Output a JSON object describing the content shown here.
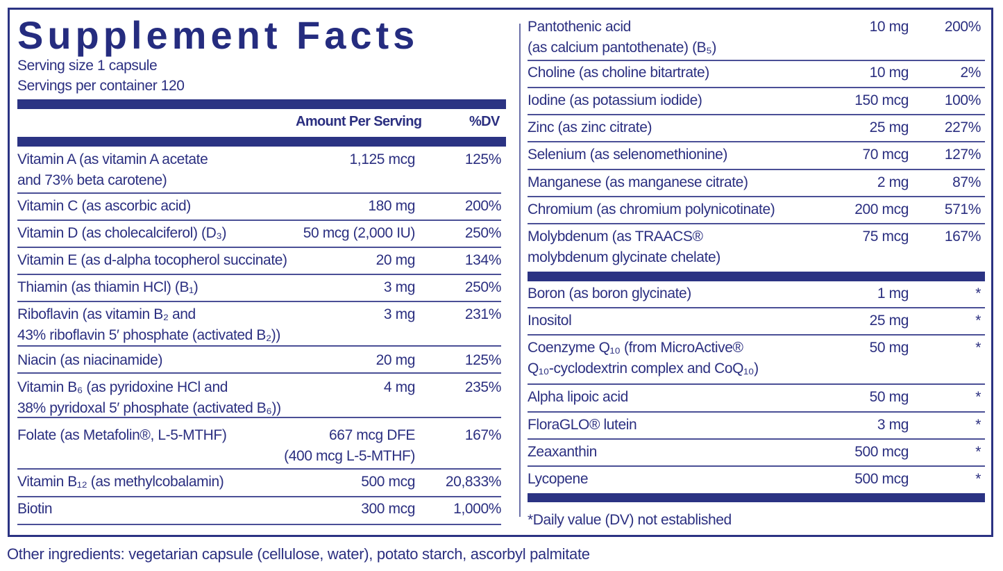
{
  "label": {
    "title": "Supplement Facts",
    "serving_size": "Serving size  1 capsule",
    "servings_per_container": "Servings per container  120",
    "header_amount": "Amount Per Serving",
    "header_dv": "%DV",
    "footnote": "*Daily value (DV) not established",
    "other_ingredients": "Other ingredients: vegetarian capsule (cellulose, water), potato starch, ascorbyl palmitate",
    "colors": {
      "ink": "#2b2f80",
      "bar": "#2b3383",
      "background": "#ffffff"
    }
  },
  "left_rows": [
    {
      "name": "Vitamin A (as vitamin A acetate\nand 73% beta carotene)",
      "amount": "1,125 mcg",
      "dv": "125%"
    },
    {
      "name": "Vitamin C (as ascorbic acid)",
      "amount": "180 mg",
      "dv": "200%"
    },
    {
      "name": "Vitamin D (as cholecalciferol) (D₃)",
      "amount": "50 mcg (2,000 IU)",
      "dv": "250%"
    },
    {
      "name": "Vitamin E (as d-alpha tocopherol succinate)",
      "amount": "20 mg",
      "dv": "134%"
    },
    {
      "name": "Thiamin (as thiamin HCl) (B₁)",
      "amount": "3 mg",
      "dv": "250%"
    },
    {
      "name": "Riboflavin (as vitamin B₂ and\n43% riboflavin 5′ phosphate (activated B₂))",
      "amount": "3 mg",
      "dv": "231%"
    },
    {
      "name": "Niacin (as niacinamide)",
      "amount": "20 mg",
      "dv": "125%"
    },
    {
      "name": "Vitamin B₆ (as pyridoxine HCl and\n38% pyridoxal 5′ phosphate (activated B₆))",
      "amount": "4 mg",
      "dv": "235%"
    },
    {
      "name": "Folate (as Metafolin®, L-5-MTHF)",
      "amount": "667 mcg DFE\n(400 mcg L-5-MTHF)",
      "dv": "167%"
    },
    {
      "name": "Vitamin B₁₂ (as methylcobalamin)",
      "amount": "500 mcg",
      "dv": "20,833%"
    },
    {
      "name": "Biotin",
      "amount": "300 mcg",
      "dv": "1,000%"
    }
  ],
  "right_rows": [
    {
      "name": "Pantothenic acid\n(as calcium pantothenate) (B₅)",
      "amount": "10 mg",
      "dv": "200%"
    },
    {
      "name": "Choline (as choline bitartrate)",
      "amount": "10 mg",
      "dv": "2%"
    },
    {
      "name": "Iodine (as potassium iodide)",
      "amount": "150 mcg",
      "dv": "100%"
    },
    {
      "name": "Zinc (as zinc citrate)",
      "amount": "25 mg",
      "dv": "227%"
    },
    {
      "name": "Selenium (as selenomethionine)",
      "amount": "70 mcg",
      "dv": "127%"
    },
    {
      "name": "Manganese (as manganese citrate)",
      "amount": "2 mg",
      "dv": "87%"
    },
    {
      "name": "Chromium (as chromium polynicotinate)",
      "amount": "200 mcg",
      "dv": "571%"
    },
    {
      "name": "Molybdenum (as TRAACS®\nmolybdenum glycinate chelate)",
      "amount": "75 mcg",
      "dv": "167%"
    }
  ],
  "right_rows_no_dv": [
    {
      "name": "Boron (as boron glycinate)",
      "amount": "1 mg",
      "dv": "*"
    },
    {
      "name": "Inositol",
      "amount": "25 mg",
      "dv": "*"
    },
    {
      "name": "Coenzyme Q₁₀ (from MicroActive®\nQ₁₀-cyclodextrin complex and CoQ₁₀)",
      "amount": "50 mg",
      "dv": "*"
    },
    {
      "name": "Alpha lipoic acid",
      "amount": "50 mg",
      "dv": "*"
    },
    {
      "name": "FloraGLO® lutein",
      "amount": "3 mg",
      "dv": "*"
    },
    {
      "name": "Zeaxanthin",
      "amount": "500 mcg",
      "dv": "*"
    },
    {
      "name": "Lycopene",
      "amount": "500 mcg",
      "dv": "*"
    }
  ]
}
